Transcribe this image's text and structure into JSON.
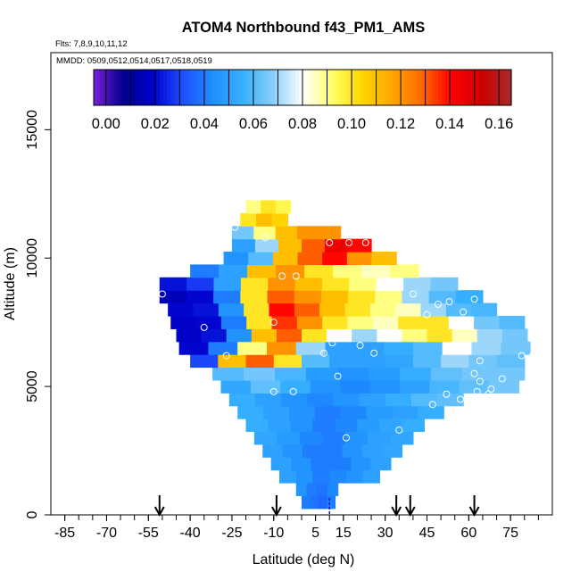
{
  "chart_data": {
    "type": "heatmap",
    "title": "ATOM4 Northbound f43_PM1_AMS",
    "subtitle_flights": "Flts: 7,8,9,10,11,12",
    "subtitle_dates": "MMDD: 0509,0512,0514,0517,0518,0519",
    "xlabel": "Latitude (deg N)",
    "ylabel": "Altitude (m)",
    "xlim": [
      -90,
      90
    ],
    "ylim": [
      0,
      18000
    ],
    "x_ticks": [
      -85,
      -70,
      -55,
      -40,
      -25,
      -10,
      5,
      15,
      30,
      45,
      60,
      75
    ],
    "y_ticks": [
      0,
      5000,
      10000,
      15000
    ],
    "colorbar": {
      "min": -0.005,
      "max": 0.165,
      "ticks": [
        "0.00",
        "0.02",
        "0.04",
        "0.06",
        "0.08",
        "0.10",
        "0.12",
        "0.14",
        "0.16"
      ],
      "tick_values": [
        0.0,
        0.02,
        0.04,
        0.06,
        0.08,
        0.1,
        0.12,
        0.14,
        0.16
      ],
      "colors": [
        "#7a1fd6",
        "#00008b",
        "#0000cd",
        "#1e50ff",
        "#1e90ff",
        "#38b0ff",
        "#87cefa",
        "#ffffff",
        "#ffff66",
        "#ffd700",
        "#ffa500",
        "#ff6a00",
        "#ff0000",
        "#cd0000",
        "#a52a2a"
      ]
    },
    "altitude_rows": [
      {
        "alt": 500,
        "xmin": 0,
        "xmax": 12,
        "values": [
          0.04,
          0.038,
          0.036,
          0.04
        ]
      },
      {
        "alt": 1000,
        "xmin": -2,
        "xmax": 13,
        "values": [
          0.045,
          0.04,
          0.038,
          0.042
        ]
      },
      {
        "alt": 1500,
        "xmin": -8,
        "xmax": 28,
        "values": [
          0.05,
          0.045,
          0.04,
          0.042,
          0.045,
          0.05
        ]
      },
      {
        "alt": 2000,
        "xmin": -11,
        "xmax": 32,
        "values": [
          0.05,
          0.045,
          0.04,
          0.04,
          0.045,
          0.05
        ]
      },
      {
        "alt": 2500,
        "xmin": -14,
        "xmax": 36,
        "values": [
          0.05,
          0.045,
          0.04,
          0.04,
          0.045,
          0.05,
          0.052
        ]
      },
      {
        "alt": 3000,
        "xmin": -17,
        "xmax": 40,
        "values": [
          0.052,
          0.048,
          0.042,
          0.04,
          0.045,
          0.05,
          0.052
        ]
      },
      {
        "alt": 3500,
        "xmin": -20,
        "xmax": 44,
        "values": [
          0.055,
          0.05,
          0.045,
          0.04,
          0.042,
          0.048,
          0.052,
          0.055
        ]
      },
      {
        "alt": 4000,
        "xmin": -23,
        "xmax": 51,
        "values": [
          0.055,
          0.05,
          0.045,
          0.04,
          0.042,
          0.048,
          0.05,
          0.055
        ]
      },
      {
        "alt": 4500,
        "xmin": -26,
        "xmax": 58,
        "values": [
          0.055,
          0.05,
          0.045,
          0.042,
          0.045,
          0.05,
          0.055,
          0.06,
          0.062
        ]
      },
      {
        "alt": 5000,
        "xmin": -29,
        "xmax": 78,
        "values": [
          0.052,
          0.062,
          0.055,
          0.045,
          0.042,
          0.045,
          0.05,
          0.058,
          0.062,
          0.065
        ]
      },
      {
        "alt": 5500,
        "xmin": -32,
        "xmax": 80,
        "values": [
          0.06,
          0.065,
          0.058,
          0.048,
          0.045,
          0.048,
          0.055,
          0.062,
          0.065,
          0.065
        ]
      },
      {
        "alt": 6000,
        "xmin": -40,
        "xmax": 80,
        "values": [
          0.03,
          0.11,
          0.13,
          0.1,
          0.06,
          0.05,
          0.05,
          0.052,
          0.06,
          0.07,
          0.065,
          0.062
        ]
      },
      {
        "alt": 6500,
        "xmin": -44,
        "xmax": 82,
        "values": [
          0.02,
          0.04,
          0.09,
          0.12,
          0.07,
          0.05,
          0.05,
          0.055,
          0.06,
          0.08,
          0.07,
          0.065
        ]
      },
      {
        "alt": 7000,
        "xmin": -45,
        "xmax": 81,
        "values": [
          0.018,
          0.022,
          0.045,
          0.11,
          0.13,
          0.1,
          0.08,
          0.07,
          0.08,
          0.09,
          0.1,
          0.085,
          0.07,
          0.065
        ]
      },
      {
        "alt": 7500,
        "xmin": -47,
        "xmax": 80,
        "values": [
          0.018,
          0.02,
          0.04,
          0.1,
          0.135,
          0.12,
          0.1,
          0.09,
          0.085,
          0.1,
          0.1,
          0.08,
          0.065,
          0.06
        ]
      },
      {
        "alt": 8000,
        "xmin": -48,
        "xmax": 70,
        "values": [
          0.02,
          0.022,
          0.045,
          0.1,
          0.14,
          0.13,
          0.11,
          0.1,
          0.09,
          0.085,
          0.07,
          0.06,
          0.058
        ]
      },
      {
        "alt": 8500,
        "xmin": -51,
        "xmax": 65,
        "values": [
          0.015,
          0.02,
          0.04,
          0.1,
          0.13,
          0.12,
          0.11,
          0.1,
          0.09,
          0.07,
          0.06,
          0.055
        ]
      },
      {
        "alt": 9000,
        "xmin": -51,
        "xmax": 56,
        "values": [
          0.022,
          0.028,
          0.05,
          0.1,
          0.12,
          0.11,
          0.1,
          0.09,
          0.08,
          0.07,
          0.065
        ]
      },
      {
        "alt": 9500,
        "xmin": -40,
        "xmax": 42,
        "values": [
          0.04,
          0.05,
          0.11,
          0.12,
          0.1,
          0.09,
          0.085,
          0.09
        ]
      },
      {
        "alt": 10000,
        "xmin": -28,
        "xmax": 34,
        "values": [
          0.045,
          0.06,
          0.11,
          0.13,
          0.14,
          0.12,
          0.11
        ]
      },
      {
        "alt": 10500,
        "xmin": -25,
        "xmax": 25,
        "values": [
          0.05,
          0.07,
          0.11,
          0.13,
          0.145,
          0.14
        ]
      },
      {
        "alt": 11000,
        "xmin": -25,
        "xmax": 14,
        "values": [
          0.065,
          0.09,
          0.11,
          0.12,
          0.12
        ]
      },
      {
        "alt": 11500,
        "xmin": -22,
        "xmax": -5,
        "values": [
          0.1,
          0.11,
          0.105
        ]
      },
      {
        "alt": 12000,
        "xmin": -20,
        "xmax": -4,
        "values": [
          0.09,
          0.1,
          0.095
        ]
      }
    ],
    "sample_points": [
      [
        -50,
        8600
      ],
      [
        -35,
        7300
      ],
      [
        -46,
        6100
      ],
      [
        -27,
        6200
      ],
      [
        -24,
        11200
      ],
      [
        -13,
        10800
      ],
      [
        -10,
        7500
      ],
      [
        -7,
        9300
      ],
      [
        -2,
        9300
      ],
      [
        10,
        10600
      ],
      [
        17,
        10600
      ],
      [
        23,
        10600
      ],
      [
        27,
        10400
      ],
      [
        11,
        6700
      ],
      [
        21,
        6600
      ],
      [
        26,
        6300
      ],
      [
        13,
        5400
      ],
      [
        8,
        6300
      ],
      [
        16,
        3000
      ],
      [
        -10,
        4800
      ],
      [
        -3,
        4800
      ],
      [
        35,
        3300
      ],
      [
        40,
        8600
      ],
      [
        45,
        7800
      ],
      [
        49,
        8200
      ],
      [
        53,
        8300
      ],
      [
        62,
        8400
      ],
      [
        58,
        7900
      ],
      [
        64,
        6000
      ],
      [
        62,
        5500
      ],
      [
        64,
        5200
      ],
      [
        68,
        4900
      ],
      [
        72,
        5300
      ],
      [
        79,
        6200
      ],
      [
        83,
        6200
      ],
      [
        85,
        7300
      ],
      [
        47,
        4300
      ],
      [
        52,
        4700
      ],
      [
        57,
        4500
      ],
      [
        63,
        4800
      ],
      [
        67,
        4700
      ],
      [
        62,
        4400
      ],
      [
        86,
        5200
      ]
    ],
    "arrows_latitude": [
      -51,
      -9,
      34,
      39,
      62
    ],
    "dashed_marker_latitude": 10
  }
}
